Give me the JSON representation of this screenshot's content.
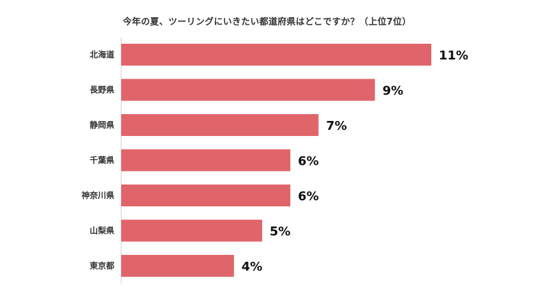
{
  "chart_data": {
    "type": "bar",
    "orientation": "horizontal",
    "title": "今年の夏、ツーリングにいきたい都道府県はどこですか？（上位7位）",
    "categories": [
      "北海道",
      "長野県",
      "静岡県",
      "千葉県",
      "神奈川県",
      "山梨県",
      "東京都"
    ],
    "values": [
      11,
      9,
      7,
      6,
      6,
      5,
      4
    ],
    "value_labels": [
      "11%",
      "9%",
      "7%",
      "6%",
      "6%",
      "5%",
      "4%"
    ],
    "unit": "%",
    "xlim": [
      0,
      11
    ],
    "grid": false,
    "legend": "none",
    "bar_color": "#e0656a"
  }
}
